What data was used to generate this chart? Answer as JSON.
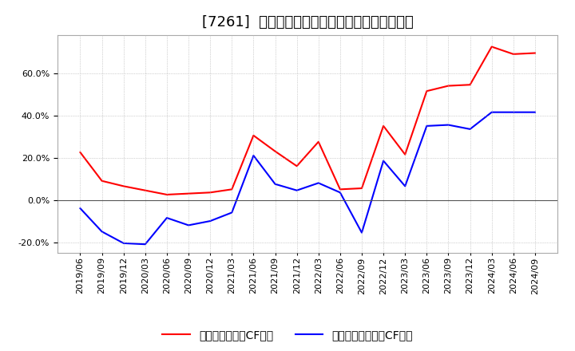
{
  "title": "[7261]  有利子負債キャッシュフロー比率の推移",
  "legend_operating": "有利子負債営業CF比率",
  "legend_free": "有利子負債フリーCF比率",
  "x_labels": [
    "2019/06",
    "2019/09",
    "2019/12",
    "2020/03",
    "2020/06",
    "2020/09",
    "2020/12",
    "2021/03",
    "2021/06",
    "2021/09",
    "2021/12",
    "2022/03",
    "2022/06",
    "2022/09",
    "2022/12",
    "2023/03",
    "2023/06",
    "2023/09",
    "2023/12",
    "2024/03",
    "2024/06",
    "2024/09"
  ],
  "operating_cf": [
    22.5,
    9.0,
    6.5,
    4.5,
    2.5,
    3.0,
    3.5,
    5.0,
    30.5,
    23.0,
    16.0,
    27.5,
    5.0,
    5.5,
    35.0,
    21.5,
    51.5,
    54.0,
    54.5,
    72.5,
    69.0,
    69.5
  ],
  "free_cf": [
    -4.0,
    -15.0,
    -20.5,
    -21.0,
    -8.5,
    -12.0,
    -10.0,
    -6.0,
    21.0,
    7.5,
    4.5,
    8.0,
    3.5,
    -15.5,
    18.5,
    6.5,
    35.0,
    35.5,
    33.5,
    41.5,
    41.5,
    41.5
  ],
  "operating_color": "#ff0000",
  "free_color": "#0000ff",
  "background_color": "#ffffff",
  "plot_bg_color": "#ffffff",
  "grid_color": "#aaaaaa",
  "ylim": [
    -25,
    78
  ],
  "yticks": [
    -20.0,
    0.0,
    20.0,
    40.0,
    60.0
  ],
  "title_fontsize": 13,
  "legend_fontsize": 10,
  "tick_fontsize": 8,
  "line_width": 1.5
}
